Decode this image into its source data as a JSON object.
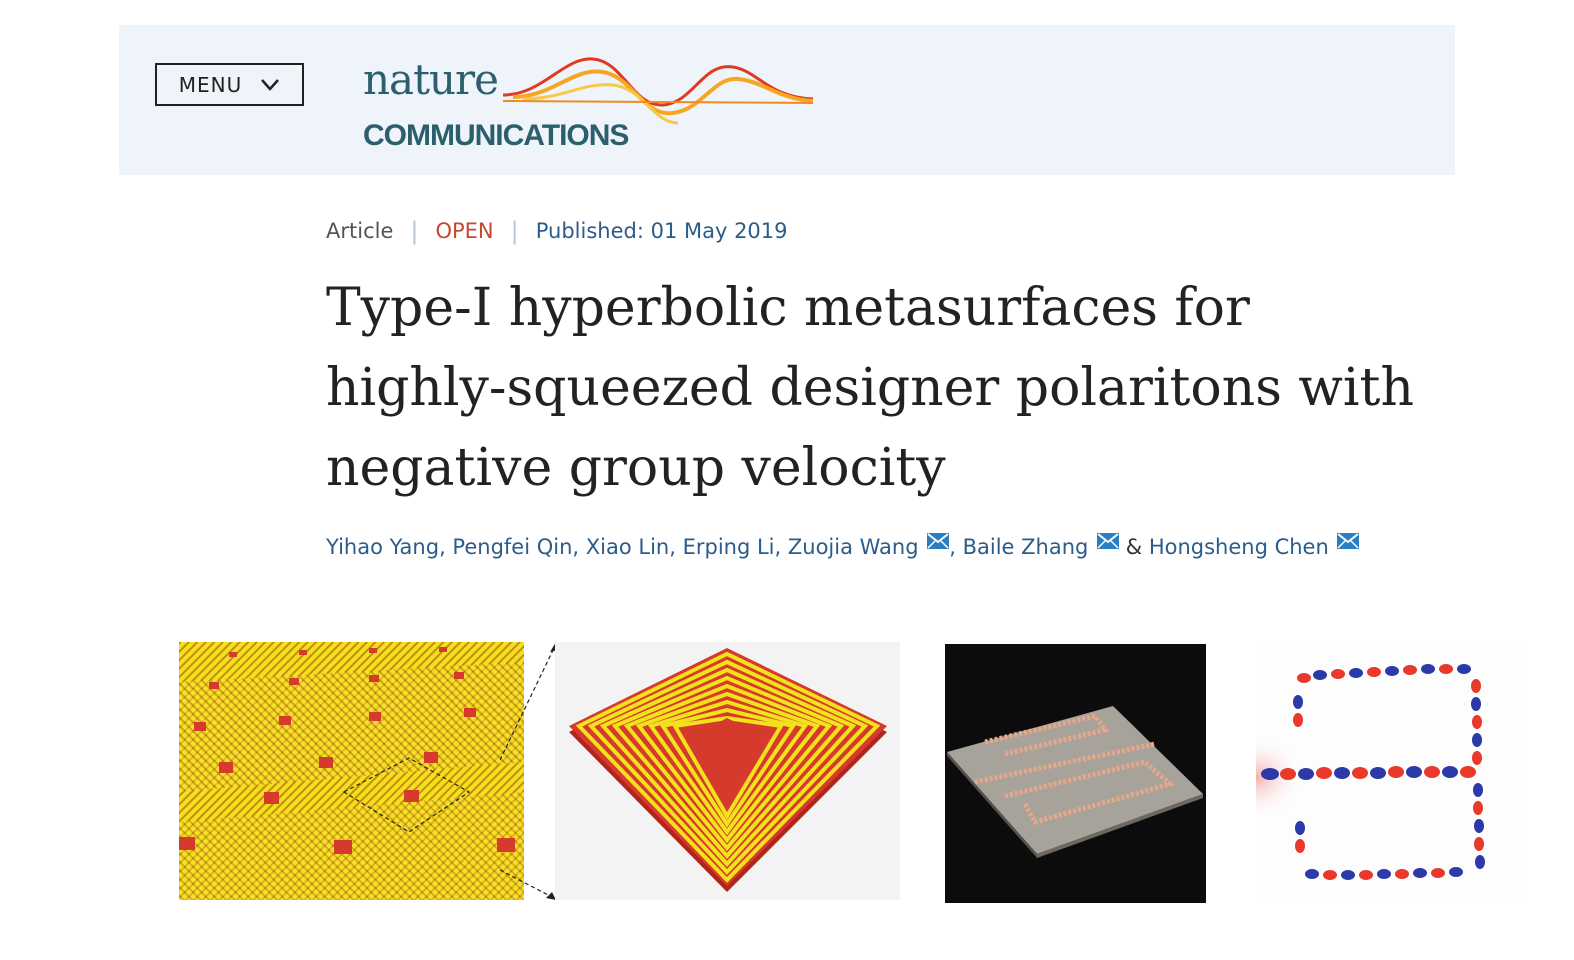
{
  "header": {
    "menu_label": "MENU",
    "logo": {
      "word1": "nature",
      "word2": "COMMUNICATIONS"
    }
  },
  "article": {
    "type": "Article",
    "access": "OPEN",
    "published": "Published: 01 May 2019",
    "title": "Type-I hyperbolic metasurfaces for highly-squeezed designer polaritons with negative group velocity",
    "authors": [
      {
        "name": "Yihao Yang",
        "sep": ", "
      },
      {
        "name": "Pengfei Qin",
        "sep": ", "
      },
      {
        "name": "Xiao Lin",
        "sep": ", "
      },
      {
        "name": "Erping Li",
        "sep": ", "
      },
      {
        "name": "Zuojia Wang",
        "sep": ", "
      },
      {
        "name": "Baile Zhang",
        "sep": " "
      },
      {
        "name": "Hongsheng Chen",
        "sep": ""
      }
    ],
    "amp": "&"
  },
  "colors": {
    "header_bg": "#eef4f9",
    "link": "#2b5c8a",
    "open": "#c7482f",
    "yellow": "#f2e21c",
    "red": "#d63a2c"
  },
  "icons": [
    "chevron-down-icon",
    "mail-icon"
  ]
}
